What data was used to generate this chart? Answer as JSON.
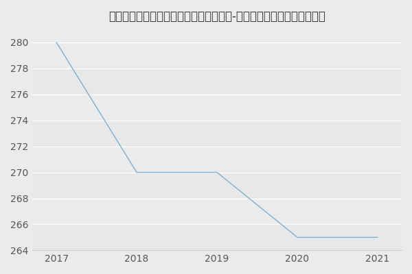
{
  "title": "空军工程大学防空反导学院军队指挥学（-历年复试）研究生录取分数线",
  "x": [
    2017,
    2018,
    2019,
    2020,
    2021
  ],
  "y": [
    280,
    270,
    270,
    265,
    265
  ],
  "line_color": "#7ab0d4",
  "background_color": "#ebebeb",
  "plot_bg_color": "#ebebeb",
  "xlim": [
    2016.7,
    2021.3
  ],
  "ylim": [
    264,
    281
  ],
  "yticks": [
    264,
    266,
    268,
    270,
    272,
    274,
    276,
    278,
    280
  ],
  "xticks": [
    2017,
    2018,
    2019,
    2020,
    2021
  ],
  "title_fontsize": 12,
  "tick_fontsize": 10,
  "grid_color": "#ffffff",
  "band_colors": [
    "#e8e8e8",
    "#ebebeb"
  ]
}
